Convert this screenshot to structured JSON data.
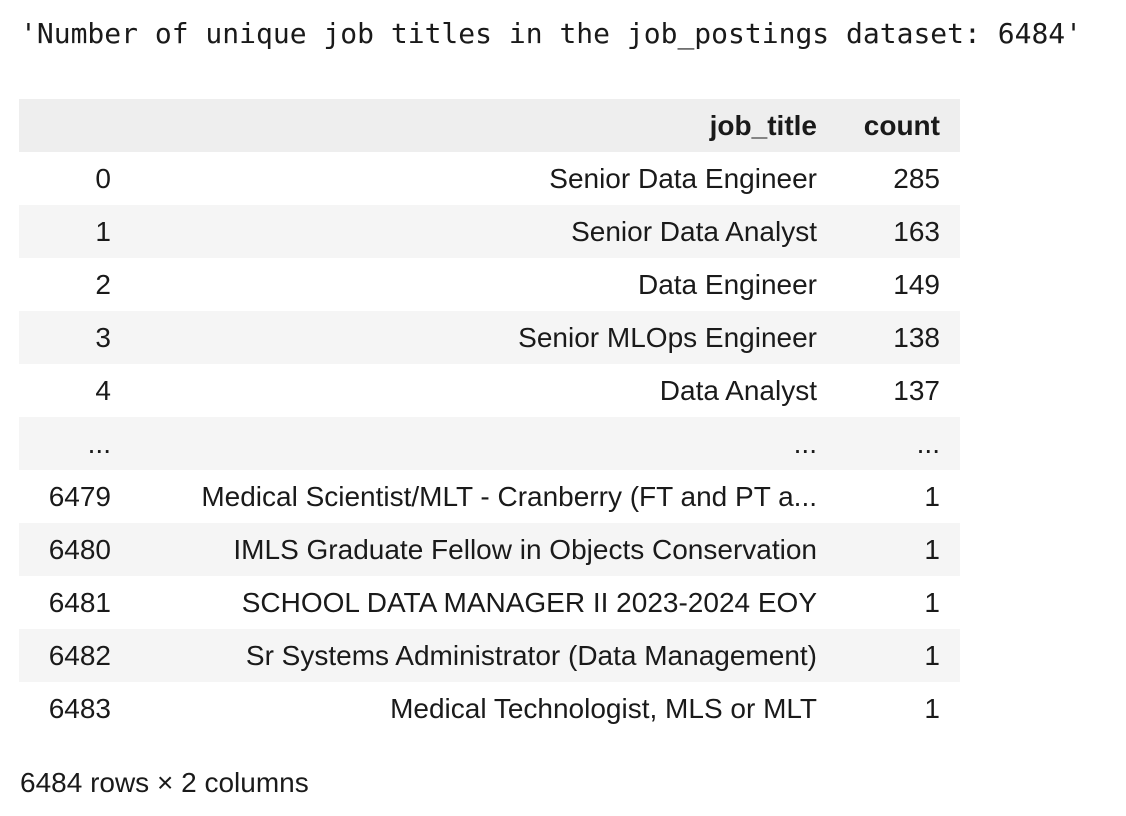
{
  "output_text": "'Number of unique job titles in the job_postings dataset: 6484'",
  "table": {
    "columns": [
      "",
      "job_title",
      "count"
    ],
    "rows": [
      {
        "index": "0",
        "job_title": "Senior Data Engineer",
        "count": "285"
      },
      {
        "index": "1",
        "job_title": "Senior Data Analyst",
        "count": "163"
      },
      {
        "index": "2",
        "job_title": "Data Engineer",
        "count": "149"
      },
      {
        "index": "3",
        "job_title": "Senior MLOps Engineer",
        "count": "138"
      },
      {
        "index": "4",
        "job_title": "Data Analyst",
        "count": "137"
      },
      {
        "index": "...",
        "job_title": "...",
        "count": "..."
      },
      {
        "index": "6479",
        "job_title": "Medical Scientist/MLT - Cranberry (FT and PT a...",
        "count": "1"
      },
      {
        "index": "6480",
        "job_title": "IMLS Graduate Fellow in Objects Conservation",
        "count": "1"
      },
      {
        "index": "6481",
        "job_title": "SCHOOL DATA MANAGER II 2023-2024 EOY",
        "count": "1"
      },
      {
        "index": "6482",
        "job_title": "Sr Systems Administrator (Data Management)",
        "count": "1"
      },
      {
        "index": "6483",
        "job_title": "Medical Technologist, MLS or MLT",
        "count": "1"
      }
    ]
  },
  "footer": "6484 rows × 2 columns"
}
